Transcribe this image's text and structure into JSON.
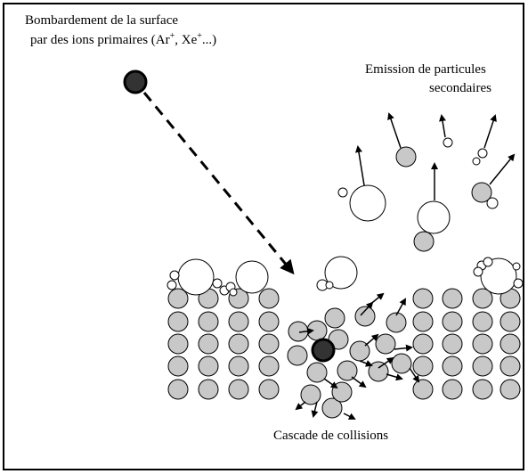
{
  "labels": {
    "bombardment": {
      "line1": "Bombardement de la surface",
      "line2": [
        "par des ions primaires (Ar",
        "+",
        ", Xe",
        "+",
        "...)"
      ]
    },
    "emission": {
      "line1": "Emission de particules",
      "line2": "secondaires"
    },
    "cascade": "Cascade de collisions"
  }
}
